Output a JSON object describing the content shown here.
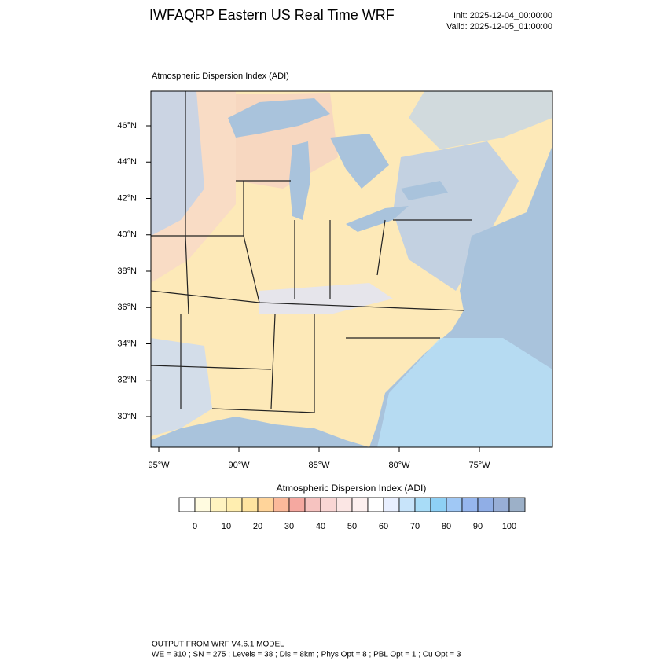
{
  "header": {
    "title": "IWFAQRP Eastern US Real Time WRF",
    "init": "Init: 2025-12-04_00:00:00",
    "valid": "Valid: 2025-12-05_01:00:00"
  },
  "map": {
    "subtitle": "Atmospheric Dispersion Index   (ADI)",
    "lat_labels": [
      "46°N",
      "44°N",
      "42°N",
      "40°N",
      "38°N",
      "36°N",
      "34°N",
      "32°N",
      "30°N"
    ],
    "lon_labels": [
      "95°W",
      "90°W",
      "85°W",
      "80°W",
      "75°W"
    ]
  },
  "colorbar": {
    "title": "Atmospheric Dispersion Index  (ADI)",
    "colors": [
      "#ffffff",
      "#fffbe0",
      "#fff3c0",
      "#ffeeb0",
      "#ffe4a0",
      "#ffd49a",
      "#fbb99a",
      "#f5a8a0",
      "#f6c3c0",
      "#f9d6d4",
      "#fbe6e4",
      "#fdf0ef",
      "#ffffff",
      "#e8efff",
      "#c8e4fa",
      "#a8dcf7",
      "#8ed0f5",
      "#a0c8f5",
      "#96b6ee",
      "#90aee6",
      "#98aed6",
      "#9cb0c8"
    ],
    "ticks": [
      0,
      10,
      20,
      30,
      40,
      50,
      60,
      70,
      80,
      90,
      100
    ]
  },
  "footer": {
    "line1": "OUTPUT FROM WRF V4.6.1 MODEL",
    "line2": "WE = 310 ; SN = 275 ; Levels = 38 ; Dis = 8km ; Phys Opt = 8 ; PBL Opt = 1 ; Cu Opt = 3"
  }
}
